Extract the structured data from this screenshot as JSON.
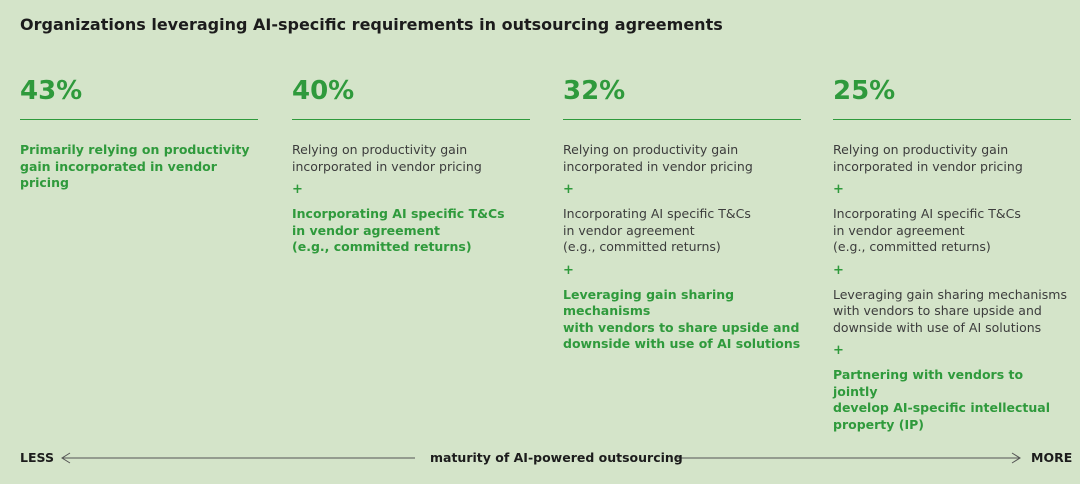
{
  "title": "Organizations leveraging AI-specific requirements in outsourcing agreements",
  "separator": "+",
  "columns": [
    {
      "percent": "43%",
      "items": [
        [
          "Primarily relying on productivity",
          "gain incorporated in vendor pricing"
        ]
      ]
    },
    {
      "percent": "40%",
      "items": [
        [
          "Relying on productivity gain",
          "incorporated in vendor pricing"
        ],
        [
          "Incorporating AI specific T&Cs",
          "in vendor agreement",
          "(e.g., committed returns)"
        ]
      ]
    },
    {
      "percent": "32%",
      "items": [
        [
          "Relying on productivity gain",
          "incorporated in vendor pricing"
        ],
        [
          "Incorporating AI specific T&Cs",
          "in vendor agreement",
          "(e.g., committed returns)"
        ],
        [
          "Leveraging gain sharing mechanisms",
          "with vendors to share upside and",
          "downside with use of AI solutions"
        ]
      ]
    },
    {
      "percent": "25%",
      "items": [
        [
          "Relying on productivity gain",
          "incorporated in vendor pricing"
        ],
        [
          "Incorporating AI specific T&Cs",
          "in vendor agreement",
          "(e.g., committed returns)"
        ],
        [
          "Leveraging gain sharing mechanisms",
          "with vendors to share upside and",
          "downside with use of AI solutions"
        ],
        [
          "Partnering with vendors to jointly",
          "develop AI-specific intellectual",
          "property (IP)"
        ]
      ]
    }
  ],
  "scale": {
    "left": "LESS",
    "label": "maturity of  AI-powered outsourcing",
    "right": "MORE"
  }
}
